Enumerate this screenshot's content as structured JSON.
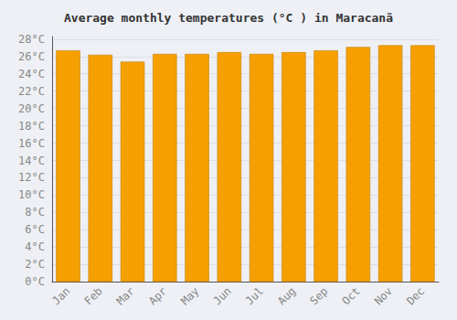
{
  "chart_data": {
    "type": "bar",
    "title": "Average monthly temperatures (°C ) in Maracanã",
    "categories": [
      "Jan",
      "Feb",
      "Mar",
      "Apr",
      "May",
      "Jun",
      "Jul",
      "Aug",
      "Sep",
      "Oct",
      "Nov",
      "Dec"
    ],
    "values": [
      26.7,
      26.2,
      25.4,
      26.3,
      26.3,
      26.5,
      26.3,
      26.5,
      26.7,
      27.1,
      27.3,
      27.3
    ],
    "color": "#F5A000",
    "ylim": [
      0,
      28.3
    ],
    "yticks": [
      {
        "value": 0,
        "label": "0°C"
      },
      {
        "value": 2,
        "label": "2°C"
      },
      {
        "value": 4,
        "label": "4°C"
      },
      {
        "value": 6,
        "label": "6°C"
      },
      {
        "value": 8,
        "label": "8°C"
      },
      {
        "value": 10,
        "label": "10°C"
      },
      {
        "value": 12,
        "label": "12°C"
      },
      {
        "value": 14,
        "label": "14°C"
      },
      {
        "value": 16,
        "label": "16°C"
      },
      {
        "value": 18,
        "label": "18°C"
      },
      {
        "value": 20,
        "label": "20°C"
      },
      {
        "value": 22,
        "label": "22°C"
      },
      {
        "value": 24,
        "label": "24°C"
      },
      {
        "value": 26,
        "label": "26°C"
      },
      {
        "value": 28,
        "label": "28°C"
      }
    ],
    "grid": true
  }
}
